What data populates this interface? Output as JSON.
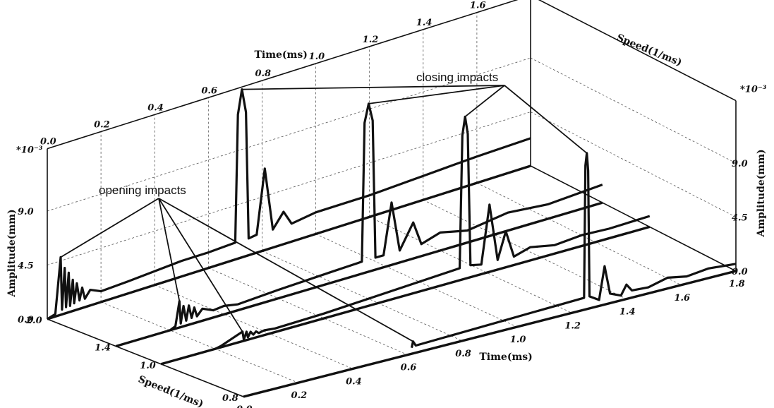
{
  "chart_data": {
    "type": "line",
    "title": "",
    "x_axis": {
      "label": "Time(ms)",
      "ticks": [
        "0.0",
        "0.2",
        "0.4",
        "0.6",
        "0.8",
        "1.0",
        "1.2",
        "1.4",
        "1.6",
        "1.8"
      ],
      "range": [
        0,
        1.8
      ]
    },
    "y_axis": {
      "label": "Speed(1/ms)",
      "ticks": [
        "0.8",
        "1.0",
        "1.4",
        "2.0"
      ]
    },
    "z_axis": {
      "label": "Amplitude(mm)",
      "ticks": [
        "0.0",
        "4.5",
        "9.0"
      ],
      "multiplier": "*10⁻³",
      "range": [
        0,
        14
      ]
    },
    "series": [
      {
        "name": "0.8",
        "points": [
          [
            0.615,
            0.5
          ],
          [
            0.62,
            1.0
          ],
          [
            0.63,
            0.6
          ],
          [
            1.245,
            1.0
          ],
          [
            1.25,
            12.0
          ],
          [
            1.255,
            13.0
          ],
          [
            1.26,
            11.5
          ],
          [
            1.265,
            1.0
          ],
          [
            1.3,
            0.5
          ],
          [
            1.32,
            3.2
          ],
          [
            1.34,
            0.8
          ],
          [
            1.38,
            0.4
          ],
          [
            1.4,
            1.2
          ],
          [
            1.42,
            0.6
          ],
          [
            1.48,
            0.5
          ],
          [
            1.55,
            0.9
          ],
          [
            1.62,
            0.6
          ],
          [
            1.7,
            0.8
          ],
          [
            1.8,
            0.6
          ]
        ]
      },
      {
        "name": "1.0",
        "points": [
          [
            0.2,
            0.0
          ],
          [
            0.22,
            0.1
          ],
          [
            0.3,
            0.8
          ],
          [
            0.305,
            0.1
          ],
          [
            0.315,
            0.7
          ],
          [
            0.32,
            0.2
          ],
          [
            0.33,
            0.6
          ],
          [
            0.34,
            0.3
          ],
          [
            0.35,
            0.5
          ],
          [
            0.36,
            0.3
          ],
          [
            0.38,
            0.4
          ],
          [
            0.42,
            0.3
          ],
          [
            0.6,
            0.4
          ],
          [
            1.1,
            1.0
          ],
          [
            1.11,
            12.0
          ],
          [
            1.12,
            13.5
          ],
          [
            1.13,
            12.0
          ],
          [
            1.14,
            1.0
          ],
          [
            1.18,
            0.8
          ],
          [
            1.21,
            5.6
          ],
          [
            1.24,
            0.8
          ],
          [
            1.27,
            3.0
          ],
          [
            1.3,
            0.7
          ],
          [
            1.36,
            1.1
          ],
          [
            1.45,
            0.7
          ],
          [
            1.55,
            0.9
          ],
          [
            1.65,
            0.8
          ],
          [
            1.8,
            0.9
          ]
        ]
      },
      {
        "name": "1.4",
        "points": [
          [
            0.2,
            0.0
          ],
          [
            0.22,
            0.2
          ],
          [
            0.235,
            2.2
          ],
          [
            0.24,
            0.3
          ],
          [
            0.25,
            1.7
          ],
          [
            0.26,
            0.4
          ],
          [
            0.27,
            1.6
          ],
          [
            0.28,
            0.5
          ],
          [
            0.29,
            1.3
          ],
          [
            0.3,
            0.5
          ],
          [
            0.32,
            1.0
          ],
          [
            0.36,
            0.6
          ],
          [
            0.4,
            0.7
          ],
          [
            0.45,
            0.5
          ],
          [
            0.6,
            0.7
          ],
          [
            0.8,
            0.9
          ],
          [
            0.91,
            1.0
          ],
          [
            0.92,
            12.5
          ],
          [
            0.935,
            14.0
          ],
          [
            0.95,
            12.5
          ],
          [
            0.96,
            1.0
          ],
          [
            0.99,
            1.0
          ],
          [
            1.02,
            5.2
          ],
          [
            1.05,
            1.0
          ],
          [
            1.1,
            3.0
          ],
          [
            1.13,
            1.0
          ],
          [
            1.2,
            1.5
          ],
          [
            1.3,
            1.0
          ],
          [
            1.45,
            1.5
          ],
          [
            1.6,
            1.2
          ],
          [
            1.8,
            1.5
          ]
        ]
      },
      {
        "name": "2.0",
        "points": [
          [
            0.0,
            0.0
          ],
          [
            0.03,
            0.2
          ],
          [
            0.05,
            4.8
          ],
          [
            0.055,
            0.4
          ],
          [
            0.065,
            3.8
          ],
          [
            0.07,
            0.5
          ],
          [
            0.08,
            3.3
          ],
          [
            0.085,
            0.5
          ],
          [
            0.095,
            2.6
          ],
          [
            0.1,
            0.6
          ],
          [
            0.11,
            2.2
          ],
          [
            0.12,
            0.7
          ],
          [
            0.13,
            1.7
          ],
          [
            0.14,
            0.7
          ],
          [
            0.16,
            1.3
          ],
          [
            0.2,
            0.9
          ],
          [
            0.3,
            1.0
          ],
          [
            0.5,
            1.3
          ],
          [
            0.6,
            1.3
          ],
          [
            0.7,
            1.4
          ],
          [
            0.71,
            12.0
          ],
          [
            0.725,
            14.0
          ],
          [
            0.74,
            12.0
          ],
          [
            0.75,
            1.4
          ],
          [
            0.78,
            1.5
          ],
          [
            0.81,
            6.8
          ],
          [
            0.84,
            1.5
          ],
          [
            0.88,
            2.7
          ],
          [
            0.91,
            1.5
          ],
          [
            1.0,
            1.8
          ],
          [
            1.2,
            1.8
          ],
          [
            1.4,
            2.0
          ],
          [
            1.6,
            2.2
          ],
          [
            1.8,
            2.3
          ]
        ]
      }
    ],
    "annotations": [
      {
        "text": "opening impacts",
        "targets": [
          [
            "2.0",
            0.05
          ],
          [
            "1.4",
            0.235
          ],
          [
            "1.0",
            0.3
          ],
          [
            "0.8",
            0.62
          ]
        ]
      },
      {
        "text": "closing impacts",
        "targets": [
          [
            "2.0",
            0.725
          ],
          [
            "1.4",
            0.935
          ],
          [
            "1.0",
            1.12
          ],
          [
            "0.8",
            1.255
          ]
        ]
      }
    ],
    "grid": true
  }
}
